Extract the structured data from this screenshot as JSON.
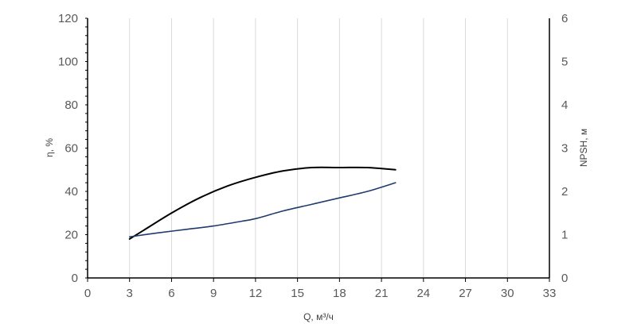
{
  "chart_data": {
    "type": "line",
    "xlabel": "Q, м³/ч",
    "ylabel": "η, %",
    "y2label": "NPSH, м",
    "xlim": [
      0,
      33
    ],
    "ylim": [
      0,
      120
    ],
    "y2lim": [
      0,
      6
    ],
    "x_ticks": [
      0,
      3,
      6,
      9,
      12,
      15,
      18,
      21,
      24,
      27,
      30,
      33
    ],
    "y_ticks": [
      0,
      20,
      40,
      60,
      80,
      100,
      120
    ],
    "y2_ticks": [
      0,
      1,
      2,
      3,
      4,
      5,
      6
    ],
    "grid": "vertical",
    "legend": "none",
    "series": [
      {
        "axis": "left",
        "color": "#000000",
        "x": [
          3,
          4,
          6,
          8,
          10,
          12,
          14,
          16,
          18,
          20,
          22
        ],
        "y": [
          18,
          22,
          30,
          37,
          42.5,
          46.5,
          49.5,
          51,
          51,
          51,
          50
        ]
      },
      {
        "axis": "right",
        "color": "#1f3a6e",
        "x": [
          3,
          5,
          7,
          9,
          11,
          12,
          14,
          16,
          18,
          20,
          22
        ],
        "y": [
          0.95,
          1.04,
          1.12,
          1.2,
          1.31,
          1.37,
          1.55,
          1.7,
          1.85,
          2.0,
          2.2
        ]
      }
    ]
  }
}
